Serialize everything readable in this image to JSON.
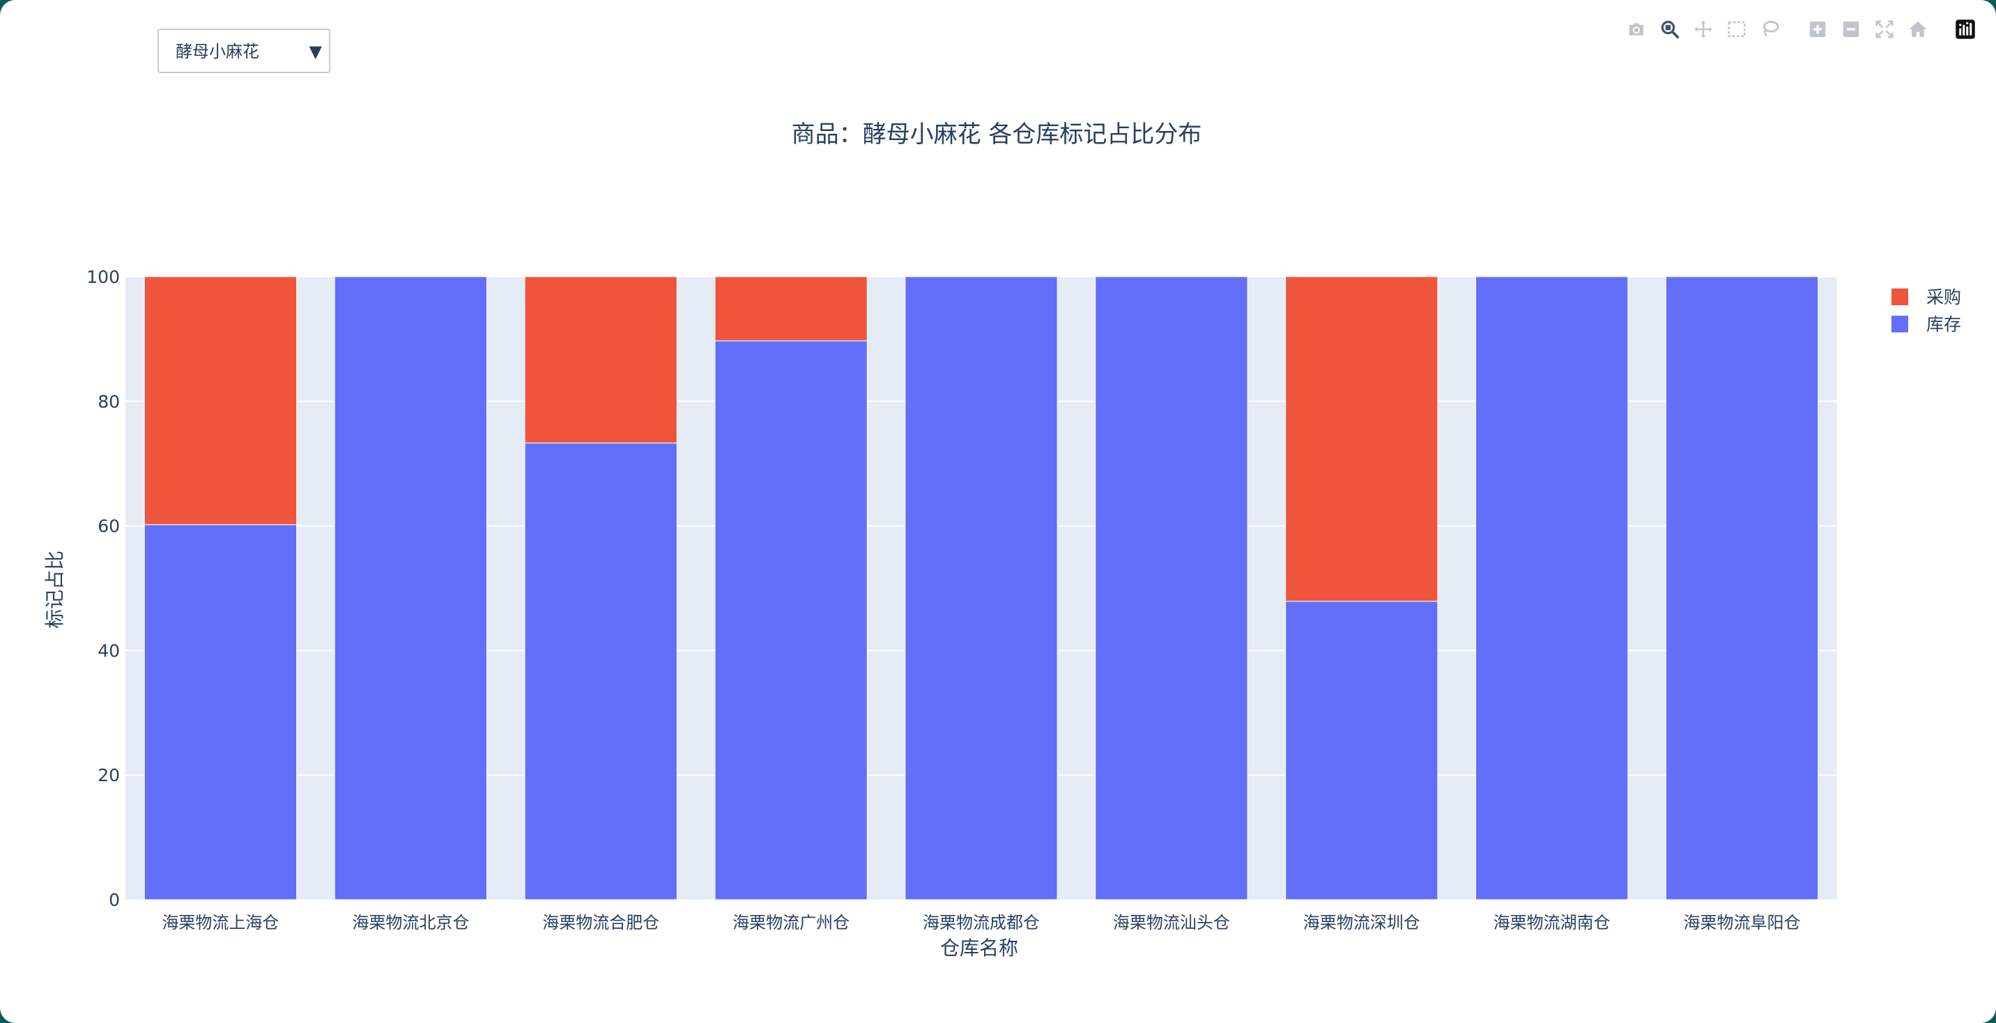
{
  "dropdown": {
    "selected": "酵母小麻花"
  },
  "modebar": {
    "buttons": [
      "camera-icon",
      "zoom-icon",
      "pan-icon",
      "box-select-icon",
      "lasso-icon",
      "zoom-in-icon",
      "zoom-out-icon",
      "autoscale-icon",
      "reset-axes-icon",
      "plotly-logo-icon"
    ]
  },
  "colors": {
    "purchase": "#ef553b",
    "stock": "#636efa",
    "plot_bg": "#e5ecf6",
    "text": "#2a3f5f"
  },
  "chart_data": {
    "type": "bar",
    "barmode": "stack",
    "title": "商品：酵母小麻花 各仓库标记占比分布",
    "xlabel": "仓库名称",
    "ylabel": "标记占比",
    "ylim": [
      0,
      100
    ],
    "yticks": [
      0,
      20,
      40,
      60,
      80,
      100
    ],
    "grid": true,
    "legend_position": "top-right",
    "categories": [
      "海栗物流上海仓",
      "海栗物流北京仓",
      "海栗物流合肥仓",
      "海栗物流广州仓",
      "海栗物流成都仓",
      "海栗物流汕头仓",
      "海栗物流深圳仓",
      "海栗物流湖南仓",
      "海栗物流阜阳仓"
    ],
    "series": [
      {
        "name": "库存",
        "color": "#636efa",
        "values": [
          60.2,
          100,
          73.3,
          89.7,
          100,
          100,
          47.9,
          100,
          100
        ]
      },
      {
        "name": "采购",
        "color": "#ef553b",
        "values": [
          39.8,
          0,
          26.7,
          10.3,
          0,
          0,
          52.1,
          0,
          0
        ]
      }
    ],
    "legend_order": [
      "采购",
      "库存"
    ]
  }
}
